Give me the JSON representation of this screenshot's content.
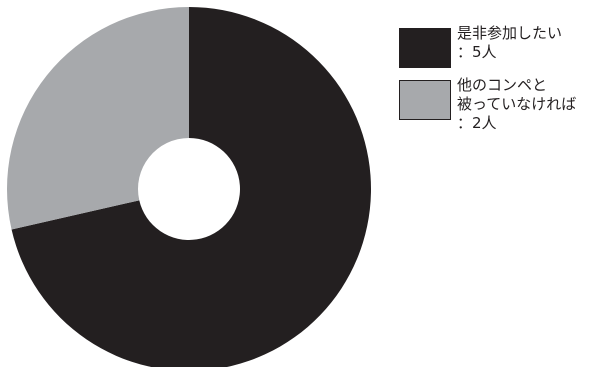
{
  "chart_data": {
    "type": "pie",
    "style": "donut",
    "slices": [
      {
        "label_lines": [
          "是非参加したい",
          "：5人"
        ],
        "value": 5,
        "color": "#231f20"
      },
      {
        "label_lines": [
          "他のコンペと",
          "被っていなければ",
          "：2人"
        ],
        "value": 2,
        "color": "#a7a9ac"
      }
    ],
    "legend_position": "top-right",
    "start": "12 o'clock",
    "direction": "clockwise"
  }
}
